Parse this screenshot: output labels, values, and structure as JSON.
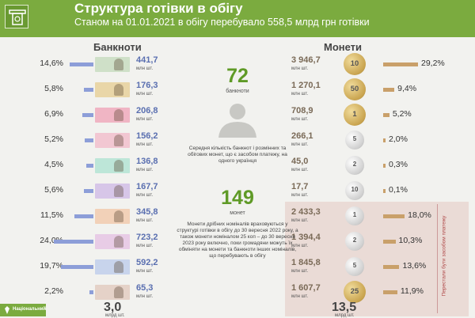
{
  "header": {
    "title": "Структура готівки в обігу",
    "subtitle": "Станом на 01.01.2021 в обігу перебувало 558,5 млрд грн готівки"
  },
  "colors": {
    "accent_green": "#7bab3f",
    "banknote_bar": "#8d9ed8",
    "coin_bar": "#c9a06a",
    "shade": "#eadbd6"
  },
  "banknotes": {
    "heading": "Банкноти",
    "unit": "млн шт.",
    "items": [
      {
        "pct": "14,6%",
        "value": "441,7",
        "share": 14.6,
        "color": "#cfe0c8",
        "icon": "banknote-1-hryvnia"
      },
      {
        "pct": "5,8%",
        "value": "176,3",
        "share": 5.8,
        "color": "#e9d6a8",
        "icon": "banknote-2-hryvnia"
      },
      {
        "pct": "6,9%",
        "value": "206,8",
        "share": 6.9,
        "color": "#f0b5c4",
        "icon": "banknote-5-hryvnia"
      },
      {
        "pct": "5,2%",
        "value": "156,2",
        "share": 5.2,
        "color": "#f2c7d2",
        "icon": "banknote-10-hryvnia"
      },
      {
        "pct": "4,5%",
        "value": "136,8",
        "share": 4.5,
        "color": "#bde6d8",
        "icon": "banknote-20-hryvnia"
      },
      {
        "pct": "5,6%",
        "value": "167,7",
        "share": 5.6,
        "color": "#d7c6e8",
        "icon": "banknote-50-hryvnia"
      },
      {
        "pct": "11,5%",
        "value": "345,8",
        "share": 11.5,
        "color": "#f2d1b8",
        "icon": "banknote-100-hryvnia"
      },
      {
        "pct": "24,0%",
        "value": "723,2",
        "share": 24.0,
        "color": "#e8cce6",
        "icon": "banknote-200-hryvnia"
      },
      {
        "pct": "19,7%",
        "value": "592,2",
        "share": 19.7,
        "color": "#c8d4ec",
        "icon": "banknote-500-hryvnia"
      },
      {
        "pct": "2,2%",
        "value": "65,3",
        "share": 2.2,
        "color": "#e5d2c8",
        "icon": "banknote-1000-hryvnia"
      }
    ],
    "total": "3,0",
    "total_unit": "млрд шт."
  },
  "coins": {
    "heading": "Монети",
    "unit": "млн шт.",
    "items": [
      {
        "pct": "29,2%",
        "value": "3 946,7",
        "share": 29.2,
        "label": "10",
        "metal": "gold",
        "icon": "coin-10-kop"
      },
      {
        "pct": "9,4%",
        "value": "1 270,1",
        "share": 9.4,
        "label": "50",
        "metal": "gold",
        "icon": "coin-50-kop"
      },
      {
        "pct": "5,2%",
        "value": "708,9",
        "share": 5.2,
        "label": "1",
        "metal": "gold",
        "icon": "coin-1-hryvnia-old"
      },
      {
        "pct": "2,0%",
        "value": "266,1",
        "share": 2.0,
        "label": "5",
        "metal": "silver",
        "icon": "coin-5-kop"
      },
      {
        "pct": "0,3%",
        "value": "45,0",
        "share": 0.3,
        "label": "2",
        "metal": "silver",
        "icon": "coin-2-kop"
      },
      {
        "pct": "0,1%",
        "value": "17,7",
        "share": 0.1,
        "label": "10",
        "metal": "silver",
        "icon": "coin-10-hryvnia"
      },
      {
        "pct": "18,0%",
        "value": "2 433,3",
        "share": 18.0,
        "label": "1",
        "metal": "silver",
        "icon": "coin-1-kop"
      },
      {
        "pct": "10,3%",
        "value": "1 394,4",
        "share": 10.3,
        "label": "2",
        "metal": "silver",
        "icon": "coin-2-kop-b"
      },
      {
        "pct": "13,6%",
        "value": "1 845,8",
        "share": 13.6,
        "label": "5",
        "metal": "silver",
        "icon": "coin-5-kop-b"
      },
      {
        "pct": "11,9%",
        "value": "1 607,7",
        "share": 11.9,
        "label": "25",
        "metal": "gold",
        "icon": "coin-25-kop"
      }
    ],
    "total": "13,5",
    "total_unit": "млрд шт.",
    "withdrawn_label": "Перестали бути засобом платежу"
  },
  "center": {
    "num1": "72",
    "num1_unit": "банкноти",
    "desc1": "Середня кількість банкнот і розмінних та обігових монет, що є засобом платежу, на одного українця",
    "num2": "149",
    "num2_unit": "монет",
    "desc2": "Монети дрібних номіналів враховуються у структурі готівки в обігу до 30 вересня 2022 року, а також монети номіналом 25 коп – до 30 вересня 2023 року включно, поки громадяни можуть їх обміняти на монети та банкноти інших номіналів, що перебувають в обігу"
  },
  "footer": {
    "nbu_label": "Національний"
  }
}
